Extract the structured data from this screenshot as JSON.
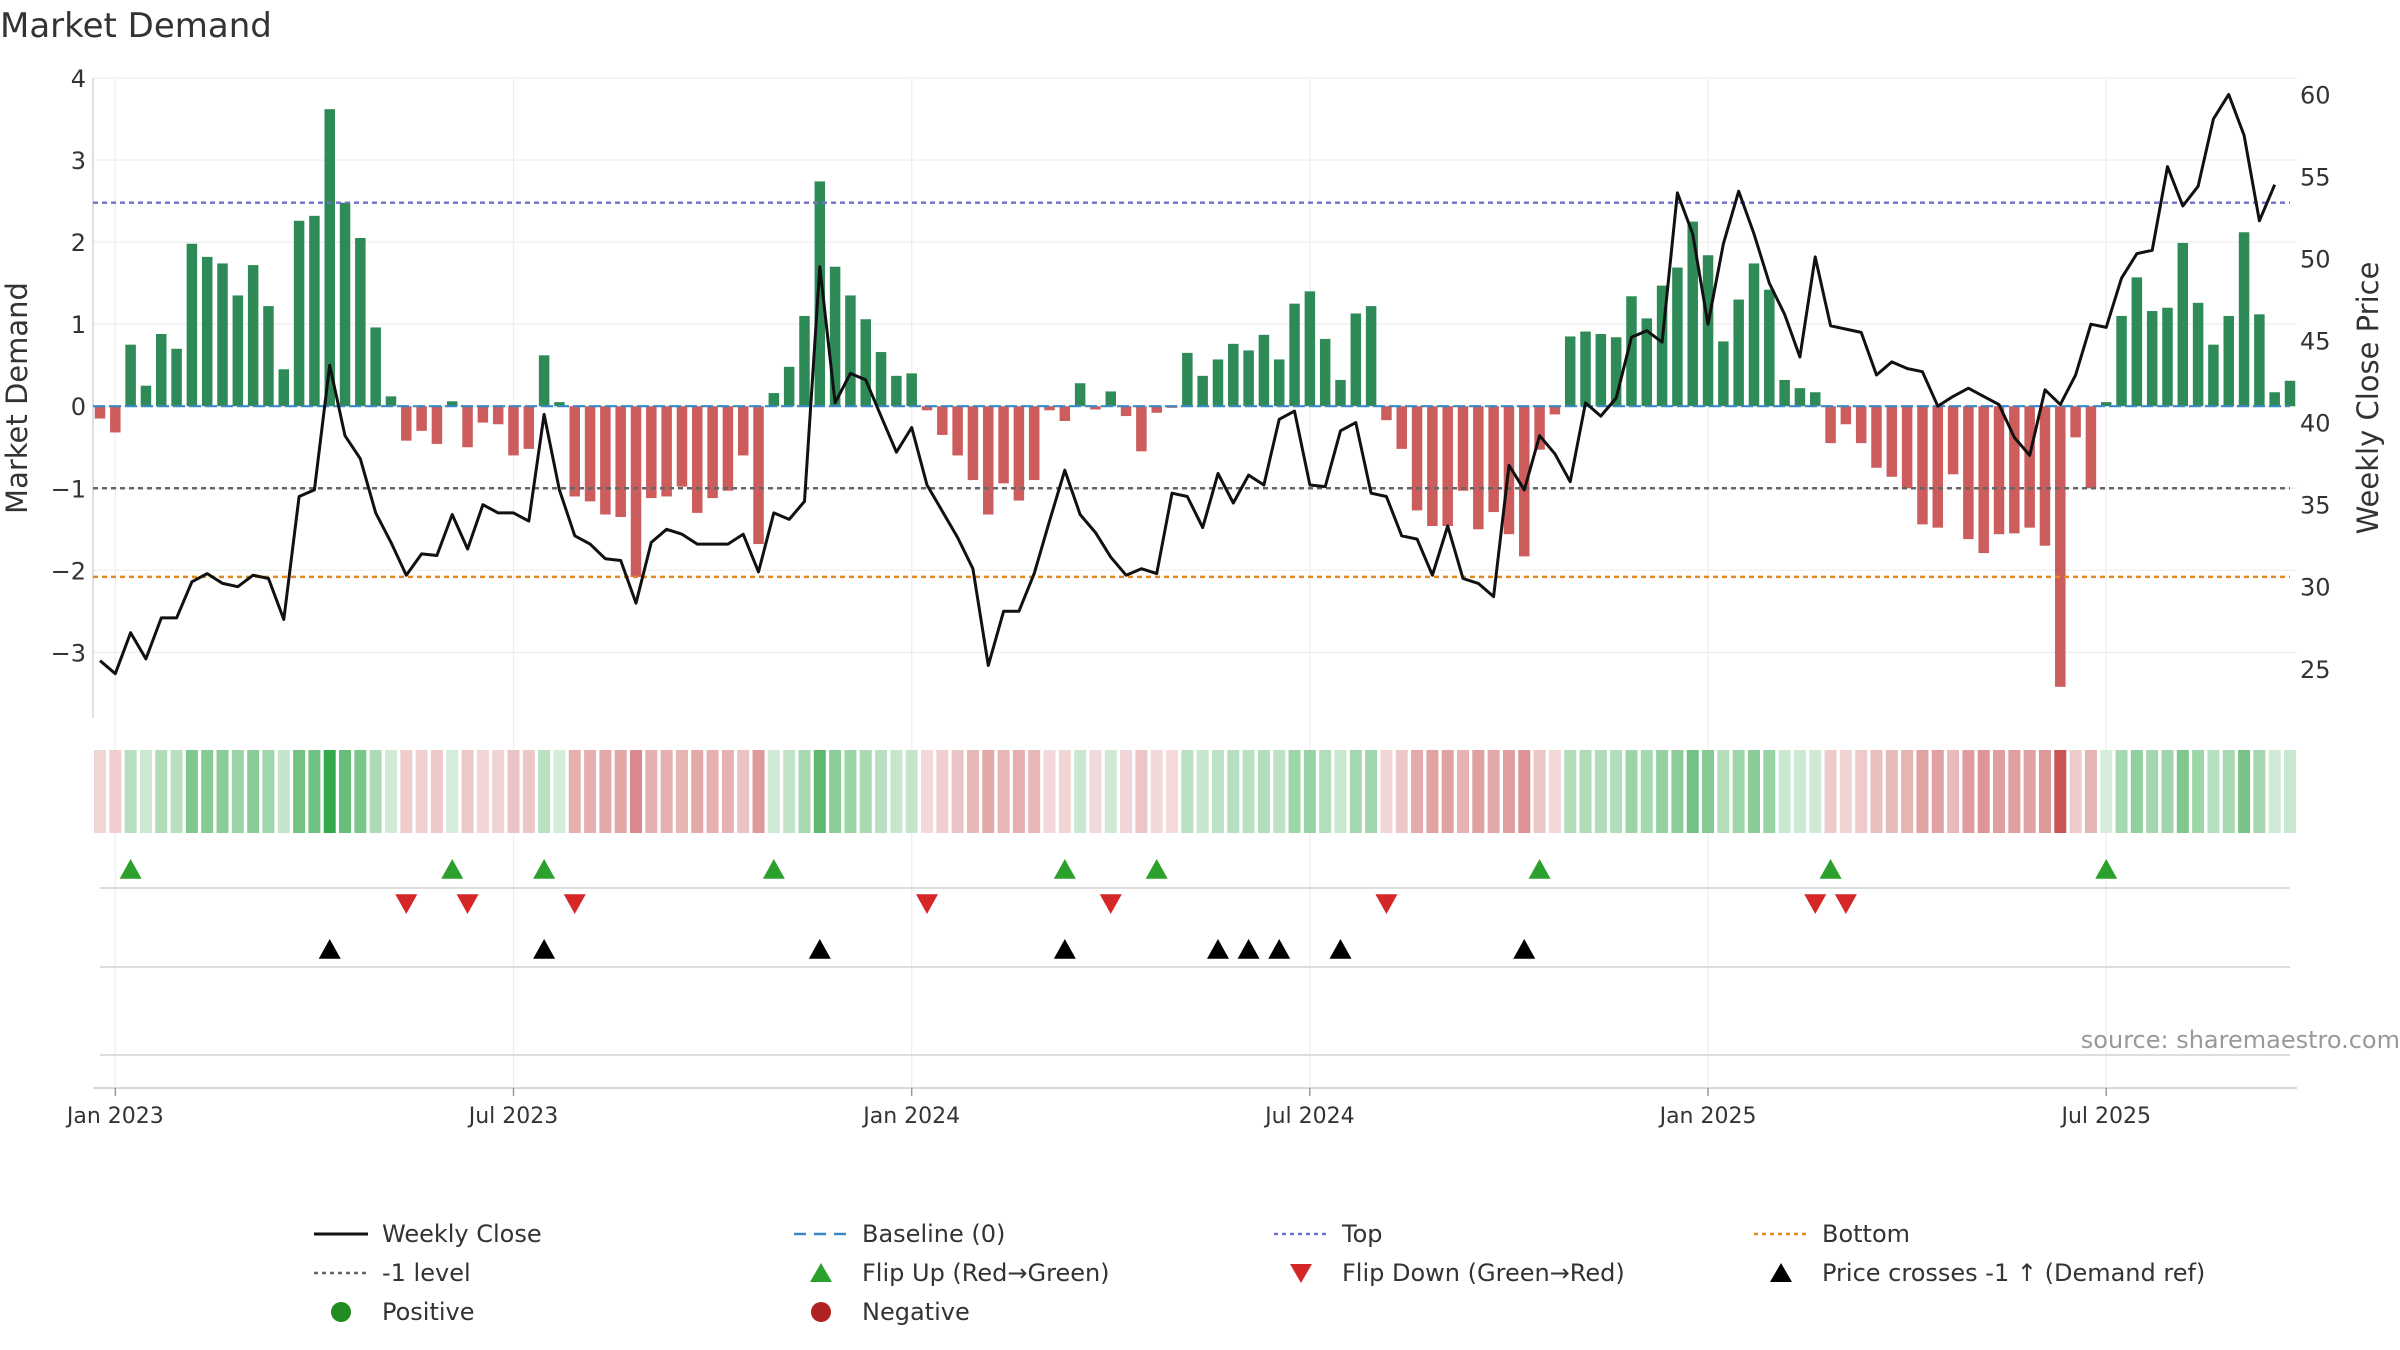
{
  "chart_data": {
    "type": "bar+line",
    "title": "Market Demand",
    "source": "source: sharemaestro.com",
    "left_axis": {
      "label": "Market Demand",
      "range": [
        -3.8,
        4.0
      ],
      "ticks": [
        4,
        3,
        2,
        1,
        0,
        -1,
        -2,
        -3
      ],
      "tick_labels": [
        "4",
        "3",
        "2",
        "1",
        "0",
        "−1",
        "−2",
        "−3"
      ]
    },
    "right_axis": {
      "label": "Weekly Close Price",
      "range": [
        22,
        61
      ],
      "ticks": [
        60,
        55,
        50,
        45,
        40,
        35,
        30,
        25
      ],
      "tick_labels": [
        "60",
        "55",
        "50",
        "45",
        "40",
        "35",
        "30",
        "25"
      ]
    },
    "x_axis": {
      "start": "2022-12-26",
      "weeks": 144,
      "tick_weeks": [
        1,
        27,
        53,
        79,
        105,
        131
      ],
      "tick_labels": [
        "Jan 2023",
        "Jul 2023",
        "Jan 2024",
        "Jul 2024",
        "Jan 2025",
        "Jul 2025"
      ]
    },
    "reference_lines": [
      {
        "name": "Top",
        "value": 2.48,
        "color": "#6f6fcf",
        "style": "dotted"
      },
      {
        "name": "-1 level",
        "value": -1.0,
        "color": "#666666",
        "style": "dotted"
      },
      {
        "name": "Bottom",
        "value": -2.08,
        "color": "#e08a1e",
        "style": "dotted"
      },
      {
        "name": "Baseline (0)",
        "value": 0,
        "color": "#3a87c8",
        "style": "dashed"
      }
    ],
    "colors": {
      "positive": "#2e8b57",
      "negative": "#cd5c5c",
      "price": "#111111",
      "flip_up": "#2ca02c",
      "flip_down": "#d62728",
      "cross": "#000000"
    },
    "market_demand": [
      -0.15,
      -0.32,
      0.75,
      0.25,
      0.88,
      0.7,
      1.98,
      1.82,
      1.74,
      1.35,
      1.72,
      1.22,
      0.45,
      2.26,
      2.32,
      3.62,
      2.48,
      2.05,
      0.96,
      0.12,
      -0.42,
      -0.3,
      -0.46,
      0.06,
      -0.5,
      -0.2,
      -0.22,
      -0.6,
      -0.52,
      0.62,
      0.05,
      -1.1,
      -1.16,
      -1.32,
      -1.35,
      -2.08,
      -1.12,
      -1.1,
      -0.98,
      -1.3,
      -1.12,
      -1.03,
      -0.6,
      -1.68,
      0.16,
      0.48,
      1.1,
      2.74,
      1.7,
      1.35,
      1.06,
      0.66,
      0.37,
      0.4,
      -0.05,
      -0.35,
      -0.6,
      -0.9,
      -1.32,
      -0.94,
      -1.15,
      -0.9,
      -0.05,
      -0.18,
      0.28,
      -0.04,
      0.18,
      -0.12,
      -0.55,
      -0.08,
      -0.02,
      0.65,
      0.37,
      0.57,
      0.76,
      0.68,
      0.87,
      0.57,
      1.25,
      1.4,
      0.82,
      0.32,
      1.13,
      1.22,
      -0.17,
      -0.52,
      -1.27,
      -1.46,
      -1.46,
      -1.03,
      -1.5,
      -1.29,
      -1.56,
      -1.83,
      -0.53,
      -0.1,
      0.85,
      0.91,
      0.88,
      0.84,
      1.34,
      1.07,
      1.47,
      1.69,
      2.25,
      1.84,
      0.79,
      1.3,
      1.74,
      1.42,
      0.32,
      0.22,
      0.17,
      -0.45,
      -0.22,
      -0.45,
      -0.75,
      -0.86,
      -1.0,
      -1.44,
      -1.48,
      -0.83,
      -1.62,
      -1.79,
      -1.56,
      -1.55,
      -1.48,
      -1.7,
      -3.42,
      -0.38,
      -1.0,
      0.05,
      1.1,
      1.57,
      1.16,
      1.2,
      1.99,
      1.26,
      0.75,
      1.1,
      2.12,
      1.12,
      0.17,
      0.31
    ],
    "weekly_close": [
      25.5,
      24.7,
      27.2,
      25.6,
      28.1,
      28.1,
      30.3,
      30.8,
      30.2,
      30.0,
      30.7,
      30.5,
      28.0,
      35.5,
      35.9,
      43.5,
      39.2,
      37.8,
      34.5,
      32.7,
      30.7,
      32.0,
      31.9,
      34.4,
      32.3,
      35.0,
      34.5,
      34.5,
      34.0,
      40.5,
      35.9,
      33.1,
      32.6,
      31.7,
      31.6,
      29.0,
      32.7,
      33.5,
      33.2,
      32.6,
      32.6,
      32.6,
      33.2,
      30.9,
      34.5,
      34.1,
      35.2,
      49.5,
      41.2,
      43.0,
      42.6,
      40.4,
      38.2,
      39.7,
      36.2,
      34.6,
      33.0,
      31.1,
      25.2,
      28.5,
      28.5,
      30.8,
      34.0,
      37.1,
      34.4,
      33.3,
      31.8,
      30.7,
      31.1,
      30.8,
      35.7,
      35.5,
      33.6,
      36.9,
      35.1,
      36.8,
      36.2,
      40.2,
      40.7,
      36.2,
      36.1,
      39.5,
      40.0,
      35.7,
      35.5,
      33.1,
      32.9,
      30.7,
      33.7,
      30.5,
      30.2,
      29.4,
      37.4,
      35.9,
      39.2,
      38.1,
      36.4,
      41.2,
      40.4,
      41.5,
      45.2,
      45.6,
      44.9,
      54.0,
      51.5,
      46.0,
      50.9,
      54.1,
      51.5,
      48.5,
      46.6,
      44.0,
      50.1,
      45.9,
      45.7,
      45.5,
      42.9,
      43.7,
      43.3,
      43.1,
      41.0,
      41.6,
      42.1,
      41.6,
      41.1,
      39.1,
      38.0,
      42.0,
      41.1,
      42.9,
      46.0,
      45.8,
      48.8,
      50.3,
      50.5,
      55.6,
      53.2,
      54.4,
      58.5,
      60.0,
      57.5,
      52.3,
      54.5
    ],
    "flip_up_weeks": [
      2,
      23,
      29,
      44,
      63,
      69,
      94,
      113,
      131
    ],
    "flip_down_weeks": [
      20,
      24,
      31,
      54,
      66,
      84,
      112,
      114
    ],
    "price_cross_weeks": [
      15,
      29,
      47,
      63,
      73,
      75,
      77,
      81,
      93
    ]
  },
  "legend": [
    {
      "label": "Weekly Close",
      "symbol": "line-solid",
      "color": "#111111"
    },
    {
      "label": "Baseline (0)",
      "symbol": "line-dashed",
      "color": "#3a87c8"
    },
    {
      "label": "Top",
      "symbol": "line-dotted",
      "color": "#6f6fcf"
    },
    {
      "label": "Bottom",
      "symbol": "line-dotted",
      "color": "#e08a1e"
    },
    {
      "label": "-1 level",
      "symbol": "line-dotted",
      "color": "#666666"
    },
    {
      "label": "Flip Up (Red→Green)",
      "symbol": "triangle-up",
      "color": "#2ca02c"
    },
    {
      "label": "Flip Down (Green→Red)",
      "symbol": "triangle-down",
      "color": "#d62728"
    },
    {
      "label": "Price crosses -1 ↑ (Demand ref)",
      "symbol": "triangle-up",
      "color": "#000000"
    },
    {
      "label": "Positive",
      "symbol": "dot",
      "color": "#228b22"
    },
    {
      "label": "Negative",
      "symbol": "dot",
      "color": "#b22222"
    }
  ]
}
